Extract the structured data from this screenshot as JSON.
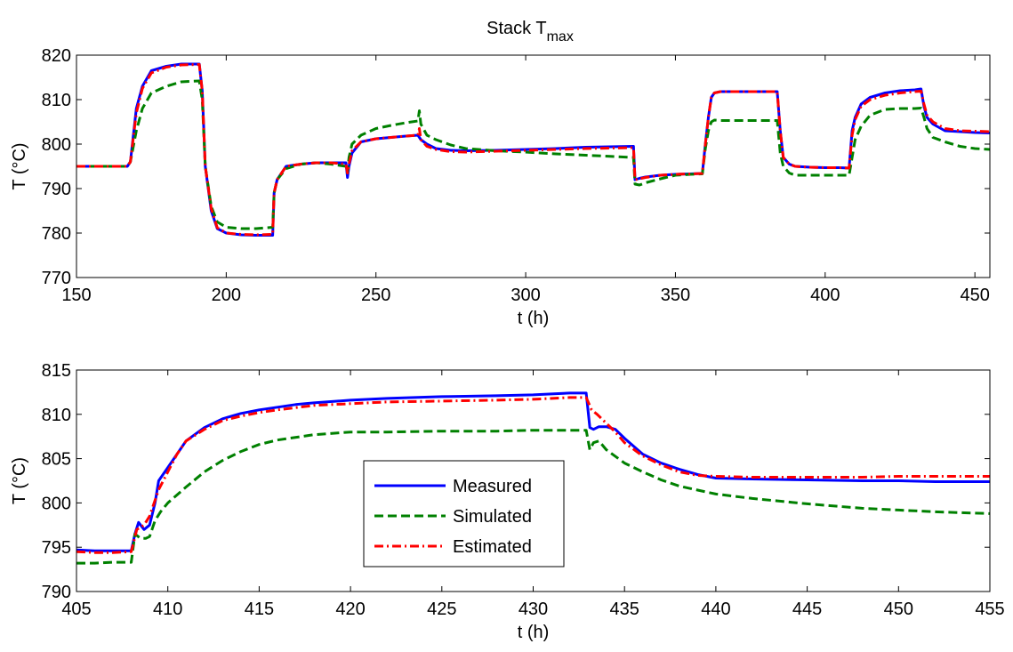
{
  "figure": {
    "title_main": "Stack T",
    "title_sub": "max"
  },
  "chart_data": [
    {
      "type": "line",
      "title": "Stack Tmax",
      "xlabel": "t (h)",
      "ylabel": "T (°C)",
      "xlim": [
        150,
        455
      ],
      "ylim": [
        770,
        820
      ],
      "xticks": [
        150,
        200,
        250,
        300,
        350,
        400,
        450
      ],
      "yticks": [
        770,
        780,
        790,
        800,
        810,
        820
      ],
      "grid": false,
      "series": [
        {
          "name": "Measured",
          "color": "#0000ff",
          "dash": "solid",
          "x": [
            150,
            167,
            168,
            170,
            172,
            175,
            180,
            185,
            191,
            192,
            193,
            195,
            197,
            200,
            205,
            210,
            215.5,
            216,
            217,
            220,
            225,
            230,
            235,
            240,
            240.5,
            241,
            242,
            245,
            250,
            255,
            260,
            264,
            265,
            267,
            270,
            275,
            280,
            290,
            300,
            310,
            320,
            336,
            336.5,
            338,
            340,
            345,
            350,
            355,
            359,
            360,
            361,
            362,
            363,
            365,
            370,
            380,
            384,
            385,
            386,
            388,
            390,
            395,
            400,
            405,
            408,
            409,
            410,
            412,
            415,
            420,
            425,
            430,
            432,
            433,
            434,
            436,
            440,
            445,
            450,
            455
          ],
          "y": [
            795,
            795,
            796,
            808,
            813,
            816.5,
            817.5,
            818,
            818,
            812,
            795,
            785,
            781,
            780,
            779.6,
            779.5,
            779.5,
            789,
            792,
            795,
            795.5,
            795.8,
            795.8,
            795.8,
            792.5,
            795,
            798,
            800.5,
            801.2,
            801.5,
            801.8,
            802,
            801,
            800,
            799,
            798.6,
            798.5,
            798.6,
            798.8,
            799,
            799.3,
            799.5,
            792,
            792.3,
            792.6,
            793,
            793.2,
            793.3,
            793.4,
            800,
            806,
            810.5,
            811.5,
            811.8,
            811.8,
            811.8,
            811.8,
            803,
            797,
            795.5,
            795,
            794.8,
            794.7,
            794.7,
            794.6,
            803,
            806,
            809,
            810.5,
            811.5,
            812,
            812.2,
            812.4,
            808.5,
            806,
            804.5,
            803,
            802.8,
            802.6,
            802.5
          ]
        },
        {
          "name": "Simulated",
          "color": "#008000",
          "dash": "dashed",
          "x": [
            150,
            167,
            168,
            170,
            172,
            175,
            180,
            185,
            191,
            192,
            193,
            195,
            197,
            200,
            205,
            210,
            215.5,
            216,
            217,
            220,
            225,
            230,
            235,
            240,
            240.5,
            241,
            242,
            245,
            250,
            255,
            260,
            264,
            264.5,
            265,
            267,
            270,
            275,
            280,
            290,
            300,
            310,
            320,
            336,
            336.5,
            338,
            340,
            345,
            350,
            355,
            359,
            360,
            361,
            362,
            363,
            365,
            370,
            380,
            384,
            385,
            386,
            388,
            390,
            395,
            400,
            405,
            408,
            409,
            410,
            412,
            415,
            420,
            425,
            430,
            432,
            433,
            434,
            436,
            440,
            445,
            450,
            455
          ],
          "y": [
            795,
            795,
            796,
            803,
            808,
            811.5,
            813,
            814,
            814.2,
            810,
            795,
            786,
            782.5,
            781.3,
            781,
            781,
            781.3,
            789,
            792,
            794.5,
            795.5,
            795.8,
            795.5,
            795,
            793.5,
            797,
            800,
            802,
            803.5,
            804.2,
            804.8,
            805.2,
            807.5,
            804.5,
            802,
            801,
            799.8,
            799,
            798.5,
            798.2,
            797.8,
            797.5,
            797,
            791,
            790.8,
            791.3,
            792.2,
            793,
            793.2,
            793.3,
            799,
            803,
            805,
            805.4,
            805.3,
            805.3,
            805.3,
            805.3,
            798,
            795,
            793.5,
            793,
            793,
            793,
            793,
            793,
            797,
            801,
            804,
            806.5,
            807.8,
            808,
            808,
            808.1,
            806,
            803.5,
            801.5,
            800.5,
            799.5,
            799,
            798.8
          ]
        },
        {
          "name": "Estimated",
          "color": "#ff0000",
          "dash": "dashdot",
          "x": [
            150,
            167,
            168,
            170,
            172,
            175,
            180,
            185,
            191,
            192,
            193,
            195,
            197,
            200,
            205,
            210,
            215.5,
            216,
            217,
            220,
            225,
            230,
            235,
            240,
            240.5,
            241,
            242,
            245,
            250,
            255,
            260,
            264,
            264.5,
            265,
            267,
            270,
            275,
            280,
            290,
            300,
            310,
            320,
            336,
            336.5,
            338,
            340,
            345,
            350,
            355,
            359,
            360,
            361,
            362,
            363,
            365,
            370,
            380,
            384,
            385,
            386,
            388,
            390,
            395,
            400,
            405,
            408,
            409,
            410,
            412,
            415,
            420,
            425,
            430,
            432,
            433,
            434,
            436,
            440,
            445,
            450,
            455
          ],
          "y": [
            795,
            795,
            796,
            807,
            812.5,
            816,
            817.3,
            817.8,
            817.9,
            812,
            795,
            785.5,
            781.2,
            780,
            779.7,
            779.6,
            779.7,
            789,
            792,
            795,
            795.5,
            795.8,
            795.8,
            795.5,
            793.5,
            795.5,
            798.5,
            800.5,
            801.2,
            801.5,
            801.8,
            802,
            803.5,
            801,
            799.5,
            798.8,
            798.3,
            798.2,
            798.4,
            798.6,
            798.8,
            799,
            799.2,
            792,
            792.2,
            792.5,
            793,
            793.2,
            793.3,
            793.4,
            800,
            806,
            810.5,
            811.5,
            811.8,
            811.8,
            811.8,
            811.8,
            803,
            797,
            795.5,
            795,
            794.8,
            794.7,
            794.7,
            794.6,
            802,
            805.5,
            808.5,
            810,
            811,
            811.5,
            811.8,
            811.9,
            809,
            806.5,
            805,
            803.5,
            803,
            802.9,
            802.8
          ]
        }
      ]
    },
    {
      "type": "line",
      "title": "",
      "xlabel": "t (h)",
      "ylabel": "T (°C)",
      "xlim": [
        405,
        455
      ],
      "ylim": [
        790,
        815
      ],
      "xticks": [
        405,
        410,
        415,
        420,
        425,
        430,
        435,
        440,
        445,
        450,
        455
      ],
      "yticks": [
        790,
        795,
        800,
        805,
        810,
        815
      ],
      "grid": false,
      "legend": "center",
      "series": [
        {
          "name": "Measured",
          "color": "#0000ff",
          "dash": "solid",
          "x": [
            405,
            406,
            407,
            408,
            408.2,
            408.4,
            408.7,
            409,
            409.3,
            409.5,
            410,
            410.5,
            411,
            412,
            413,
            414,
            415,
            416,
            417,
            418,
            420,
            422,
            425,
            428,
            430,
            431,
            432,
            432.9,
            433.1,
            433.3,
            433.6,
            434,
            434.5,
            435,
            436,
            437,
            438,
            439,
            440,
            442,
            445,
            448,
            450,
            452,
            455
          ],
          "y": [
            794.7,
            794.6,
            794.6,
            794.6,
            796.5,
            797.8,
            797,
            797.5,
            800,
            802.5,
            804,
            805.5,
            807,
            808.5,
            809.5,
            810.1,
            810.5,
            810.8,
            811.1,
            811.3,
            811.6,
            811.8,
            812,
            812.1,
            812.2,
            812.3,
            812.4,
            812.4,
            808.5,
            808.3,
            808.6,
            808.6,
            808.3,
            807.3,
            805.5,
            804.5,
            803.8,
            803.2,
            802.8,
            802.7,
            802.6,
            802.5,
            802.5,
            802.4,
            802.4
          ]
        },
        {
          "name": "Simulated",
          "color": "#008000",
          "dash": "dashed",
          "x": [
            405,
            406,
            407,
            408,
            408.2,
            408.5,
            408.8,
            409,
            409.3,
            409.6,
            410,
            411,
            412,
            413,
            414,
            415,
            416,
            418,
            420,
            422,
            425,
            428,
            430,
            432,
            432.9,
            433.1,
            433.3,
            433.6,
            434,
            435,
            436,
            437,
            438,
            440,
            442,
            445,
            448,
            450,
            452,
            455
          ],
          "y": [
            793.2,
            793.2,
            793.3,
            793.3,
            796.5,
            796,
            796,
            796.2,
            798,
            799,
            800,
            801.8,
            803.5,
            804.8,
            805.8,
            806.6,
            807.1,
            807.7,
            808,
            808,
            808.1,
            808.1,
            808.2,
            808.2,
            808.2,
            806,
            806.8,
            807,
            806,
            804.5,
            803.5,
            802.6,
            801.9,
            801,
            800.5,
            799.9,
            799.4,
            799.2,
            799,
            798.8
          ]
        },
        {
          "name": "Estimated",
          "color": "#ff0000",
          "dash": "dashdot",
          "x": [
            405,
            406,
            407,
            408,
            408.3,
            408.7,
            409,
            409.5,
            410,
            410.5,
            411,
            412,
            413,
            414,
            415,
            416,
            418,
            420,
            422,
            425,
            428,
            430,
            432,
            432.9,
            433.2,
            433.5,
            434,
            434.5,
            435,
            436,
            437,
            438,
            439,
            440,
            442,
            445,
            448,
            450,
            452,
            455
          ],
          "y": [
            794.5,
            794.4,
            794.4,
            794.5,
            797,
            797.5,
            798.5,
            801.5,
            803.5,
            805.5,
            807,
            808.3,
            809.3,
            809.8,
            810.2,
            810.5,
            811,
            811.2,
            811.4,
            811.5,
            811.6,
            811.7,
            811.9,
            811.9,
            810.5,
            810,
            809,
            808,
            806.8,
            805.3,
            804.3,
            803.5,
            803.1,
            803,
            802.9,
            802.9,
            802.9,
            803,
            803,
            803
          ]
        }
      ]
    }
  ]
}
